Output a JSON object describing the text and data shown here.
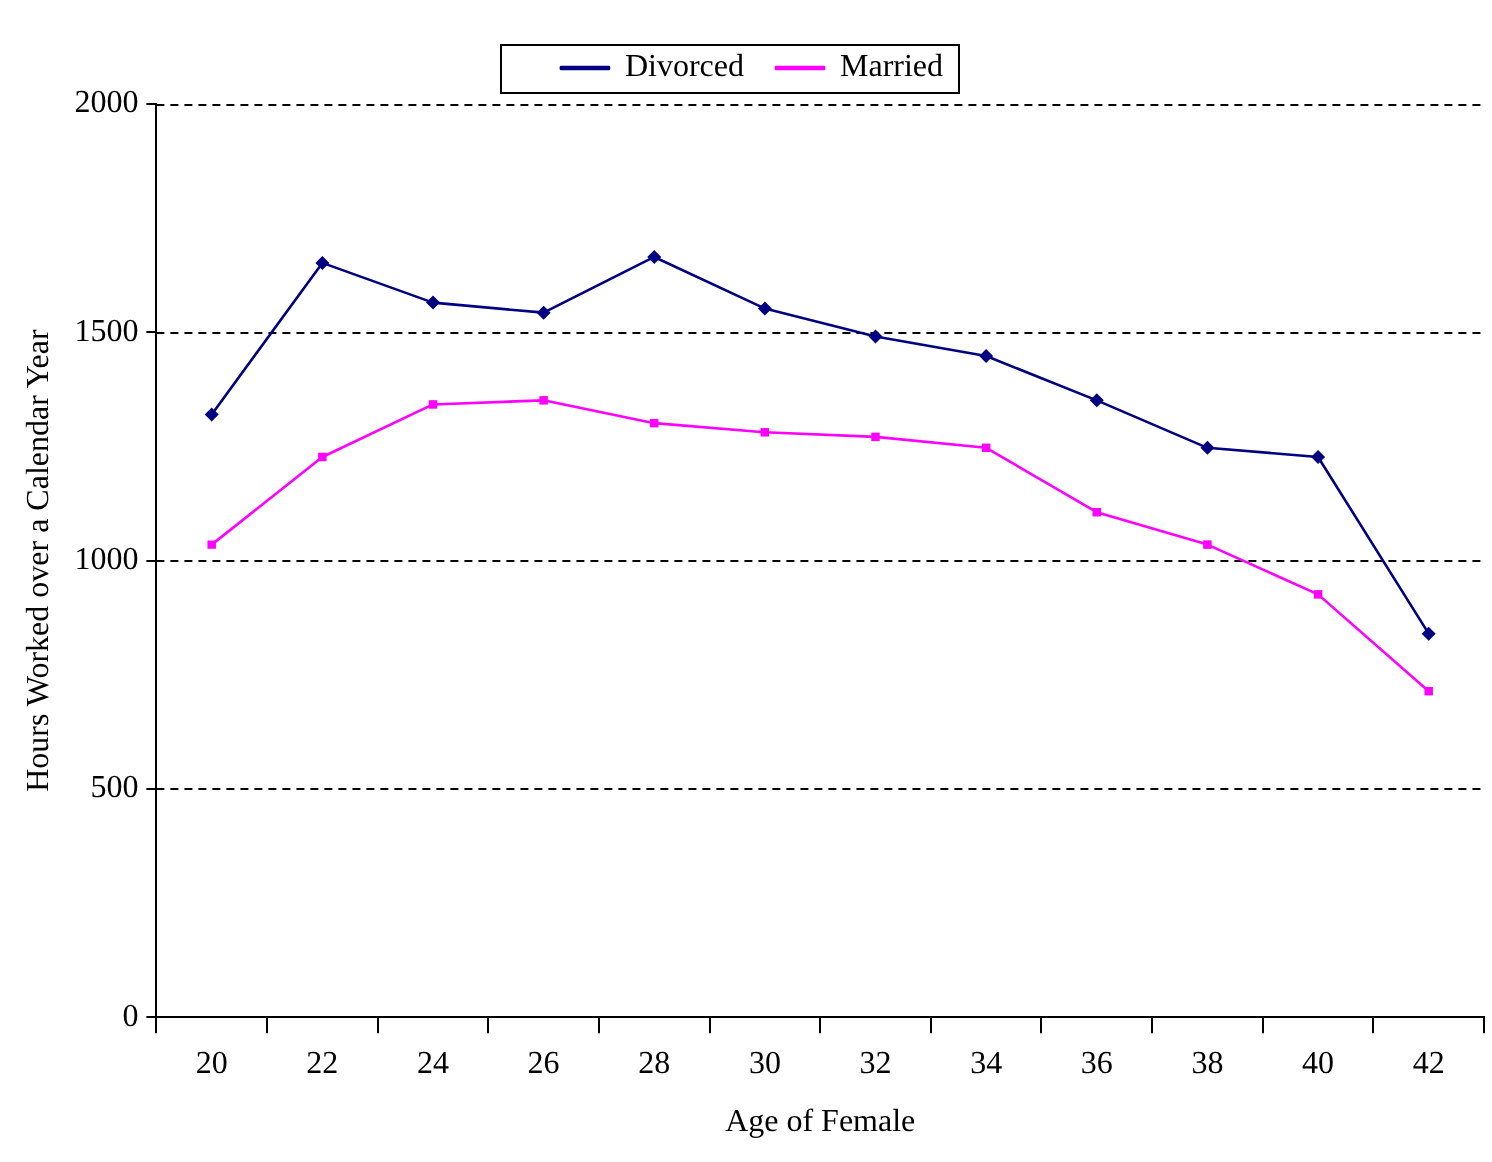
{
  "chart_data": {
    "type": "line",
    "xlabel": "Age of Female",
    "ylabel": "Hours Worked over a Calendar Year",
    "categories": [
      "20",
      "22",
      "24",
      "26",
      "28",
      "30",
      "32",
      "34",
      "36",
      "38",
      "40",
      "42"
    ],
    "series": [
      {
        "name": "Divorced",
        "color": "#000080",
        "marker": "diamond",
        "values": [
          1320,
          1652,
          1565,
          1543,
          1665,
          1552,
          1491,
          1448,
          1351,
          1247,
          1227,
          840
        ]
      },
      {
        "name": "Married",
        "color": "#ff00ff",
        "marker": "square",
        "values": [
          1035,
          1227,
          1342,
          1351,
          1301,
          1281,
          1271,
          1247,
          1106,
          1035,
          926,
          714
        ]
      }
    ],
    "ylim": [
      0,
      2000
    ],
    "yticks": [
      0,
      500,
      {
        "value": 1000,
        "label": "1000"
      },
      {
        "value": 1500,
        "label": "1500"
      },
      {
        "value": 2000,
        "label": "2000"
      }
    ],
    "grid": "y",
    "legend": "top",
    "line_style": "solid"
  }
}
